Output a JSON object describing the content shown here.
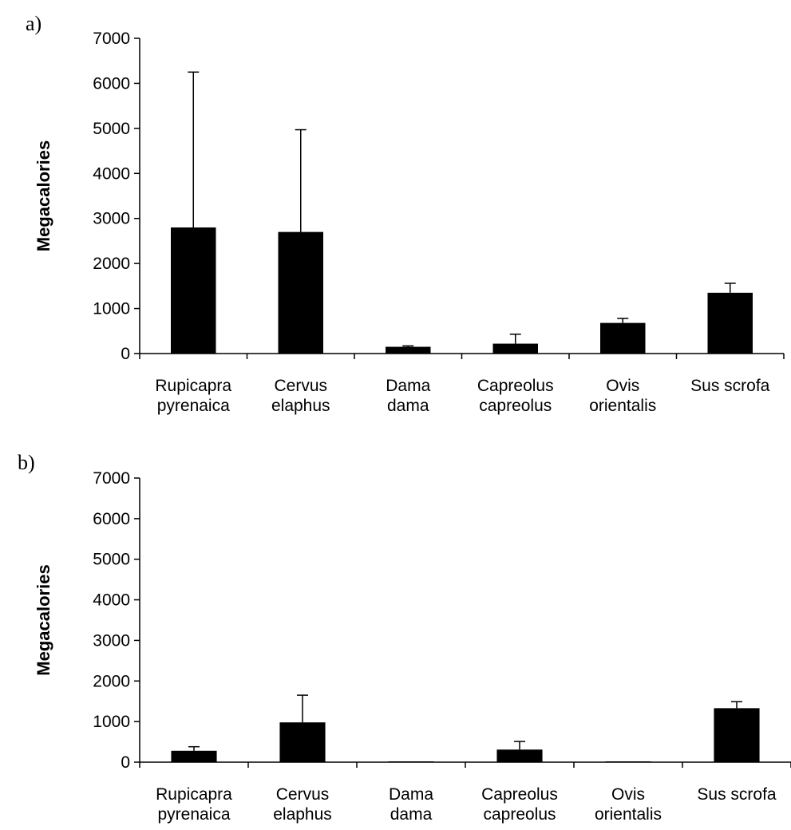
{
  "chart_data": [
    {
      "type": "bar",
      "panel_label": "a)",
      "ylabel": "Megacalories",
      "ylim": [
        0,
        7000
      ],
      "yticks": [
        0,
        1000,
        2000,
        3000,
        4000,
        5000,
        6000,
        7000
      ],
      "categories": [
        [
          "Rupicapra",
          "pyrenaica"
        ],
        [
          "Cervus",
          "elaphus"
        ],
        [
          "Dama",
          "dama"
        ],
        [
          "Capreolus",
          "capreolus"
        ],
        [
          "Ovis",
          "orientalis"
        ],
        [
          "Sus scrofa"
        ]
      ],
      "values": [
        2800,
        2700,
        150,
        220,
        680,
        1350
      ],
      "errors": [
        3450,
        2270,
        20,
        210,
        100,
        210
      ],
      "bar_color": "#000000",
      "grid": false
    },
    {
      "type": "bar",
      "panel_label": "b)",
      "ylabel": "Megacalories",
      "ylim": [
        0,
        7000
      ],
      "yticks": [
        0,
        1000,
        2000,
        3000,
        4000,
        5000,
        6000,
        7000
      ],
      "categories": [
        [
          "Rupicapra",
          "pyrenaica"
        ],
        [
          "Cervus",
          "elaphus"
        ],
        [
          "Dama",
          "dama"
        ],
        [
          "Capreolus",
          "capreolus"
        ],
        [
          "Ovis",
          "orientalis"
        ],
        [
          "Sus scrofa"
        ]
      ],
      "values": [
        280,
        980,
        20,
        310,
        20,
        1330
      ],
      "errors": [
        100,
        670,
        0,
        200,
        0,
        160
      ],
      "bar_color": "#000000",
      "grid": false
    }
  ]
}
